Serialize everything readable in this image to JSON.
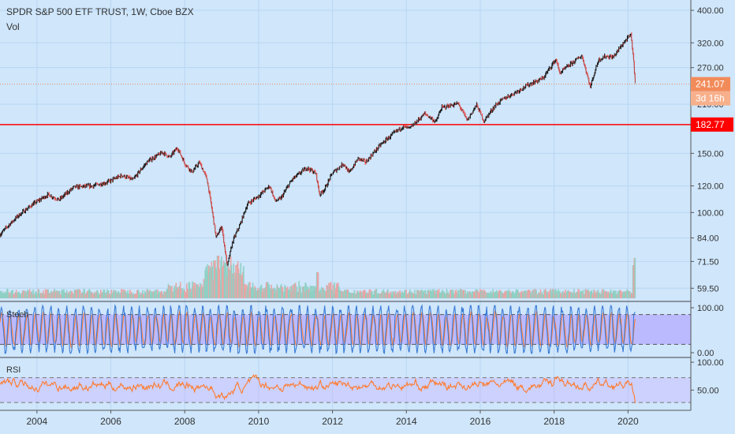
{
  "header": {
    "symbol_line": "SPDR S&P 500 ETF TRUST, 1W, Cboe BZX",
    "volume_label": "Vol"
  },
  "price_axis": {
    "ticks": [
      "400.00",
      "320.00",
      "270.00",
      "241.07",
      "210.00",
      "182.77",
      "150.00",
      "120.00",
      "100.00",
      "84.00",
      "71.50",
      "59.50"
    ],
    "last_price": "241.07",
    "countdown": "3d 16h",
    "level_line": "182.77"
  },
  "stoch": {
    "label": "Stoch",
    "ticks": [
      "100.00",
      "0.00"
    ],
    "upper_band": 80,
    "lower_band": 20
  },
  "rsi": {
    "label": "RSI",
    "ticks": [
      "100.00",
      "50.00"
    ],
    "upper_band": 70,
    "lower_band": 30
  },
  "time_axis": {
    "labels": [
      "2004",
      "2006",
      "2008",
      "2010",
      "2012",
      "2014",
      "2016",
      "2018",
      "2020"
    ]
  },
  "colors": {
    "background": "#cfe6fb",
    "up": "#26a69a",
    "down": "#ef5350",
    "level_line": "#ff0000",
    "last_price_tag": "#f28b5a",
    "stoch_band": "#b3a6ff",
    "stoch_k": "#3a7bd5",
    "stoch_d": "#ff7b2e",
    "rsi_line": "#ff7b2e",
    "rsi_band": "#c8b8ff"
  },
  "chart_data": {
    "type": "line",
    "title": "SPDR S&P 500 ETF TRUST, 1W, Cboe BZX",
    "log_scale": true,
    "x_range": [
      2003,
      2021.7
    ],
    "price_range": [
      58,
      420
    ],
    "series": [
      {
        "name": "SPDR S&P 500 ETF TRUST",
        "points": [
          [
            2003.0,
            86
          ],
          [
            2003.5,
            98
          ],
          [
            2003.9,
            106
          ],
          [
            2004.3,
            113
          ],
          [
            2004.6,
            109
          ],
          [
            2005.0,
            119
          ],
          [
            2005.5,
            120
          ],
          [
            2005.9,
            123
          ],
          [
            2006.3,
            129
          ],
          [
            2006.6,
            125
          ],
          [
            2007.0,
            142
          ],
          [
            2007.4,
            151
          ],
          [
            2007.6,
            146
          ],
          [
            2007.8,
            156
          ],
          [
            2008.0,
            140
          ],
          [
            2008.2,
            132
          ],
          [
            2008.4,
            141
          ],
          [
            2008.6,
            126
          ],
          [
            2008.75,
            100
          ],
          [
            2008.85,
            84
          ],
          [
            2009.0,
            91
          ],
          [
            2009.15,
            69
          ],
          [
            2009.3,
            82
          ],
          [
            2009.5,
            92
          ],
          [
            2009.7,
            106
          ],
          [
            2010.0,
            112
          ],
          [
            2010.3,
            120
          ],
          [
            2010.45,
            108
          ],
          [
            2010.6,
            110
          ],
          [
            2010.9,
            125
          ],
          [
            2011.3,
            136
          ],
          [
            2011.55,
            131
          ],
          [
            2011.65,
            113
          ],
          [
            2011.8,
            118
          ],
          [
            2012.0,
            131
          ],
          [
            2012.3,
            140
          ],
          [
            2012.45,
            131
          ],
          [
            2012.7,
            145
          ],
          [
            2012.9,
            141
          ],
          [
            2013.3,
            159
          ],
          [
            2013.6,
            170
          ],
          [
            2013.9,
            180
          ],
          [
            2014.1,
            178
          ],
          [
            2014.5,
            197
          ],
          [
            2014.8,
            186
          ],
          [
            2014.95,
            205
          ],
          [
            2015.4,
            211
          ],
          [
            2015.65,
            188
          ],
          [
            2015.9,
            209
          ],
          [
            2016.1,
            187
          ],
          [
            2016.4,
            208
          ],
          [
            2016.6,
            217
          ],
          [
            2016.9,
            226
          ],
          [
            2017.3,
            240
          ],
          [
            2017.7,
            251
          ],
          [
            2018.05,
            286
          ],
          [
            2018.15,
            260
          ],
          [
            2018.6,
            285
          ],
          [
            2018.75,
            293
          ],
          [
            2018.98,
            236
          ],
          [
            2019.2,
            285
          ],
          [
            2019.4,
            292
          ],
          [
            2019.6,
            290
          ],
          [
            2019.9,
            322
          ],
          [
            2020.08,
            338
          ],
          [
            2020.13,
            300
          ],
          [
            2020.2,
            241
          ]
        ]
      }
    ],
    "horizontal_line": 182.77,
    "last_value": 241.07,
    "volume_spikes": [
      [
        2008.8,
        0.8
      ],
      [
        2008.9,
        0.9
      ],
      [
        2009.1,
        0.75
      ],
      [
        2011.6,
        0.55
      ],
      [
        2020.15,
        0.7
      ],
      [
        2020.2,
        0.85
      ]
    ]
  }
}
